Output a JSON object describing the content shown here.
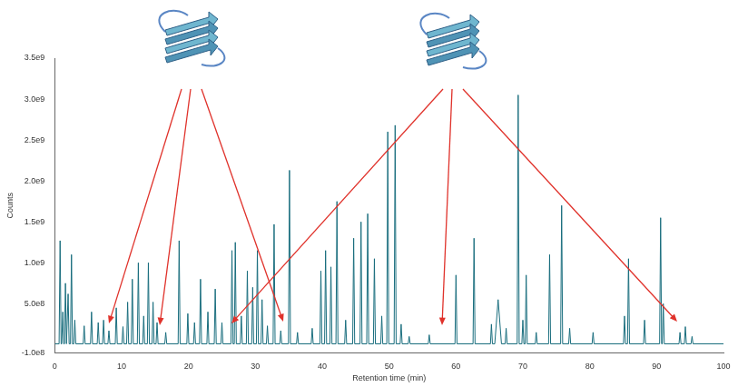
{
  "chart_data": {
    "type": "line",
    "x_label": "Retention time (min)",
    "y_label": "Counts",
    "color": "#1a6e7e",
    "grid": false,
    "xlim": [
      0,
      100
    ],
    "xticks": [
      0,
      10,
      20,
      30,
      40,
      50,
      60,
      70,
      80,
      90,
      100
    ],
    "ylim": [
      -100000000.0,
      3500000000.0
    ],
    "yticks": [
      {
        "value": -100000000.0,
        "label": "-1.0e8"
      },
      {
        "value": 500000000.0,
        "label": "5.0e8"
      },
      {
        "value": 1000000000.0,
        "label": "1.0e9"
      },
      {
        "value": 1500000000.0,
        "label": "1.5e9"
      },
      {
        "value": 2000000000.0,
        "label": "2.0e9"
      },
      {
        "value": 2500000000.0,
        "label": "2.5e9"
      },
      {
        "value": 3000000000.0,
        "label": "3.0e9"
      },
      {
        "value": 3500000000.0,
        "label": "3.5e9"
      }
    ],
    "x": [
      0,
      0.65,
      0.8,
      0.95,
      1.05,
      1.2,
      1.35,
      1.45,
      1.6,
      1.75,
      1.85,
      2.0,
      2.15,
      2.35,
      2.5,
      2.65,
      2.85,
      3.0,
      3.15,
      4.25,
      4.4,
      4.55,
      5.35,
      5.5,
      5.65,
      6.35,
      6.5,
      6.65,
      7.15,
      7.3,
      7.45,
      7.95,
      8.1,
      8.25,
      9.05,
      9.2,
      9.35,
      10.05,
      10.2,
      10.35,
      10.75,
      10.9,
      11.05,
      11.45,
      11.6,
      11.75,
      12.35,
      12.5,
      12.65,
      13.15,
      13.3,
      13.45,
      13.85,
      14.0,
      14.15,
      14.55,
      14.7,
      14.85,
      15.15,
      15.3,
      15.45,
      16.45,
      16.6,
      16.75,
      18.45,
      18.6,
      18.75,
      19.75,
      19.9,
      20.05,
      20.75,
      20.9,
      21.05,
      21.65,
      21.8,
      21.95,
      22.75,
      22.9,
      23.05,
      23.85,
      24.0,
      24.15,
      24.85,
      25.0,
      25.15,
      26.35,
      26.5,
      26.65,
      26.85,
      27.0,
      27.15,
      27.75,
      27.9,
      28.05,
      28.65,
      28.8,
      28.95,
      29.45,
      29.6,
      29.75,
      30.15,
      30.3,
      30.45,
      30.85,
      31.0,
      31.15,
      31.65,
      31.8,
      31.95,
      32.65,
      32.8,
      32.95,
      33.65,
      33.8,
      33.95,
      34.95,
      35.1,
      35.25,
      36.15,
      36.3,
      36.45,
      38.35,
      38.5,
      38.65,
      39.65,
      39.8,
      39.95,
      40.35,
      40.5,
      40.65,
      41.15,
      41.3,
      41.45,
      42.05,
      42.2,
      42.35,
      43.35,
      43.5,
      43.65,
      44.55,
      44.7,
      44.85,
      45.65,
      45.8,
      45.95,
      46.65,
      46.8,
      46.95,
      47.65,
      47.8,
      47.95,
      48.75,
      48.9,
      49.05,
      49.65,
      49.8,
      49.95,
      50.75,
      50.9,
      51.05,
      51.65,
      51.8,
      51.95,
      52.85,
      53.0,
      53.15,
      55.85,
      56.0,
      56.15,
      59.85,
      60.0,
      60.15,
      62.55,
      62.7,
      62.85,
      65.15,
      65.3,
      65.45,
      65.8,
      66.3,
      66.8,
      67.35,
      67.5,
      67.65,
      69.15,
      69.3,
      69.45,
      69.85,
      70.0,
      70.15,
      70.35,
      70.5,
      70.65,
      71.85,
      72.0,
      72.15,
      73.85,
      74.0,
      74.15,
      75.65,
      75.8,
      75.95,
      76.85,
      77.0,
      77.15,
      80.35,
      80.5,
      80.65,
      85.05,
      85.2,
      85.35,
      85.65,
      85.8,
      85.95,
      88.05,
      88.2,
      88.35,
      90.45,
      90.6,
      90.75,
      90.85,
      91.0,
      91.15,
      93.35,
      93.5,
      93.65,
      94.15,
      94.3,
      94.45,
      95.15,
      95.3,
      95.45,
      100
    ],
    "values": [
      10000000.0,
      10000000.0,
      1270000000.0,
      10000000.0,
      10000000.0,
      400000000.0,
      10000000.0,
      10000000.0,
      750000000.0,
      10000000.0,
      10000000.0,
      620000000.0,
      10000000.0,
      10000000.0,
      1100000000.0,
      10000000.0,
      10000000.0,
      300000000.0,
      10000000.0,
      10000000.0,
      230000000.0,
      10000000.0,
      10000000.0,
      400000000.0,
      10000000.0,
      10000000.0,
      270000000.0,
      10000000.0,
      10000000.0,
      300000000.0,
      10000000.0,
      10000000.0,
      170000000.0,
      10000000.0,
      10000000.0,
      450000000.0,
      10000000.0,
      10000000.0,
      220000000.0,
      10000000.0,
      10000000.0,
      520000000.0,
      10000000.0,
      10000000.0,
      800000000.0,
      10000000.0,
      10000000.0,
      1000000000.0,
      10000000.0,
      10000000.0,
      350000000.0,
      10000000.0,
      10000000.0,
      1000000000.0,
      10000000.0,
      10000000.0,
      520000000.0,
      10000000.0,
      10000000.0,
      270000000.0,
      10000000.0,
      10000000.0,
      150000000.0,
      10000000.0,
      10000000.0,
      1270000000.0,
      10000000.0,
      10000000.0,
      380000000.0,
      10000000.0,
      10000000.0,
      270000000.0,
      10000000.0,
      10000000.0,
      800000000.0,
      10000000.0,
      10000000.0,
      400000000.0,
      10000000.0,
      10000000.0,
      680000000.0,
      10000000.0,
      10000000.0,
      270000000.0,
      10000000.0,
      10000000.0,
      1150000000.0,
      10000000.0,
      10000000.0,
      1250000000.0,
      10000000.0,
      10000000.0,
      350000000.0,
      10000000.0,
      10000000.0,
      900000000.0,
      10000000.0,
      10000000.0,
      700000000.0,
      10000000.0,
      10000000.0,
      1150000000.0,
      10000000.0,
      10000000.0,
      550000000.0,
      10000000.0,
      10000000.0,
      230000000.0,
      10000000.0,
      10000000.0,
      1470000000.0,
      10000000.0,
      10000000.0,
      170000000.0,
      10000000.0,
      10000000.0,
      2130000000.0,
      10000000.0,
      10000000.0,
      150000000.0,
      10000000.0,
      10000000.0,
      200000000.0,
      10000000.0,
      10000000.0,
      900000000.0,
      10000000.0,
      10000000.0,
      1150000000.0,
      10000000.0,
      10000000.0,
      950000000.0,
      10000000.0,
      10000000.0,
      1750000000.0,
      10000000.0,
      10000000.0,
      300000000.0,
      10000000.0,
      10000000.0,
      1300000000.0,
      10000000.0,
      10000000.0,
      1500000000.0,
      10000000.0,
      10000000.0,
      1600000000.0,
      10000000.0,
      10000000.0,
      1050000000.0,
      10000000.0,
      10000000.0,
      350000000.0,
      10000000.0,
      10000000.0,
      2600000000.0,
      10000000.0,
      10000000.0,
      2680000000.0,
      10000000.0,
      10000000.0,
      250000000.0,
      10000000.0,
      10000000.0,
      100000000.0,
      10000000.0,
      10000000.0,
      120000000.0,
      10000000.0,
      10000000.0,
      850000000.0,
      10000000.0,
      10000000.0,
      1300000000.0,
      10000000.0,
      10000000.0,
      250000000.0,
      10000000.0,
      10000000.0,
      550000000.0,
      10000000.0,
      10000000.0,
      200000000.0,
      10000000.0,
      10000000.0,
      3050000000.0,
      10000000.0,
      10000000.0,
      300000000.0,
      10000000.0,
      10000000.0,
      850000000.0,
      10000000.0,
      10000000.0,
      150000000.0,
      10000000.0,
      10000000.0,
      1100000000.0,
      10000000.0,
      10000000.0,
      1700000000.0,
      10000000.0,
      10000000.0,
      200000000.0,
      10000000.0,
      10000000.0,
      150000000.0,
      10000000.0,
      10000000.0,
      350000000.0,
      10000000.0,
      10000000.0,
      1050000000.0,
      10000000.0,
      10000000.0,
      300000000.0,
      10000000.0,
      10000000.0,
      1550000000.0,
      10000000.0,
      10000000.0,
      500000000.0,
      10000000.0,
      10000000.0,
      150000000.0,
      10000000.0,
      10000000.0,
      220000000.0,
      10000000.0,
      10000000.0,
      100000000.0,
      10000000.0,
      10000000.0
    ]
  }
}
